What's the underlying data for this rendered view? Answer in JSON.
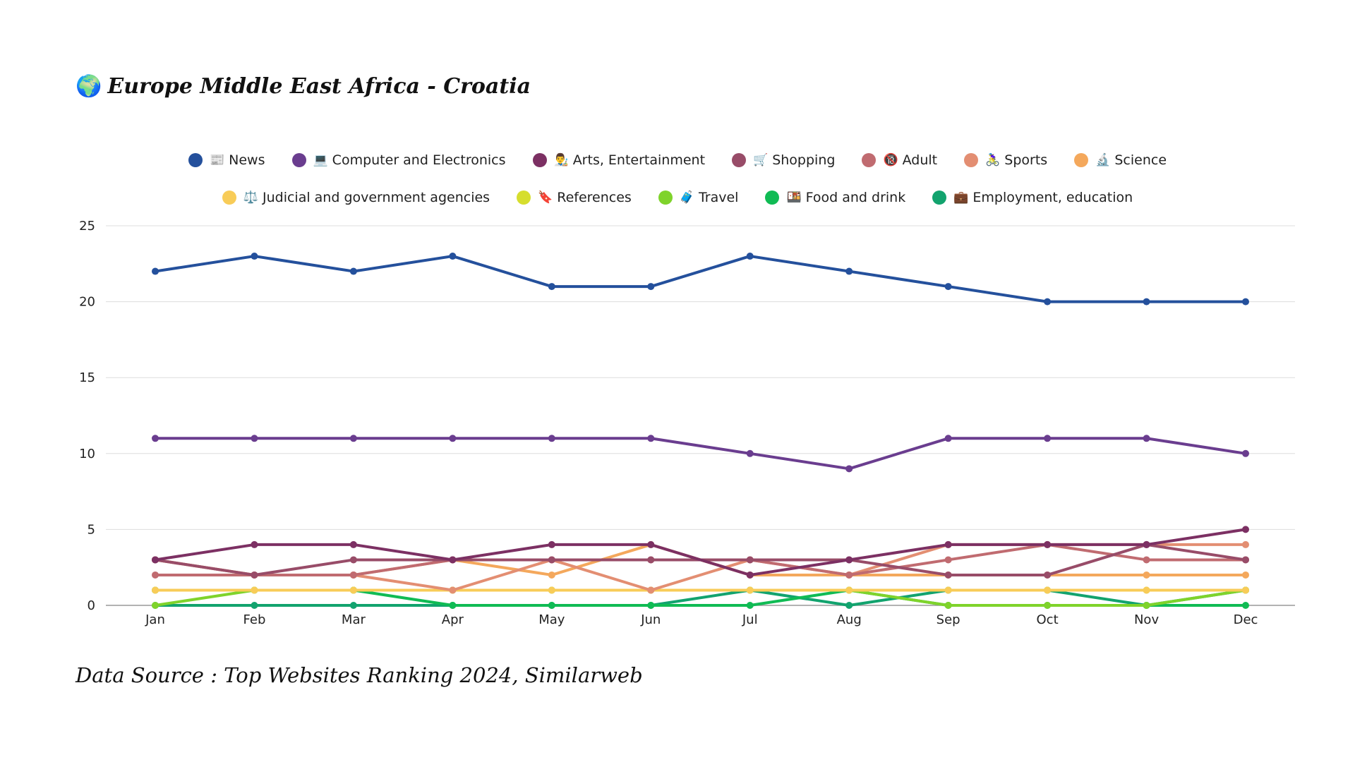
{
  "title": {
    "icon": "🌍",
    "text": "Europe Middle East Africa - Croatia"
  },
  "source": "Data Source : Top Websites Ranking 2024, Similarweb",
  "chart_data": {
    "type": "line",
    "categories": [
      "Jan",
      "Feb",
      "Mar",
      "Apr",
      "May",
      "Jun",
      "Jul",
      "Aug",
      "Sep",
      "Oct",
      "Nov",
      "Dec"
    ],
    "ylim": [
      0,
      25
    ],
    "yticks": [
      0,
      5,
      10,
      15,
      20,
      25
    ],
    "grid": true,
    "legend_position": "top-center",
    "series": [
      {
        "name": "News",
        "icon": "📰",
        "color": "#24509c",
        "values": [
          22,
          23,
          22,
          23,
          21,
          21,
          23,
          22,
          21,
          20,
          20,
          20
        ]
      },
      {
        "name": "Computer and Electronics",
        "icon": "💻",
        "color": "#6a3d8f",
        "values": [
          11,
          11,
          11,
          11,
          11,
          11,
          10,
          9,
          11,
          11,
          11,
          10
        ]
      },
      {
        "name": "Arts, Entertainment",
        "icon": "👨‍🎨",
        "color": "#7c3063",
        "values": [
          3,
          4,
          4,
          3,
          4,
          4,
          2,
          3,
          4,
          4,
          4,
          5
        ]
      },
      {
        "name": "Shopping",
        "icon": "🛒",
        "color": "#984c68",
        "values": [
          3,
          2,
          3,
          3,
          3,
          3,
          3,
          3,
          2,
          2,
          4,
          3
        ]
      },
      {
        "name": "Adult",
        "icon": "🔞",
        "color": "#c06b70",
        "values": [
          2,
          2,
          2,
          3,
          3,
          3,
          3,
          2,
          3,
          4,
          3,
          3
        ]
      },
      {
        "name": "Sports",
        "icon": "🚴‍♀️",
        "color": "#e38e72",
        "values": [
          3,
          2,
          2,
          1,
          3,
          1,
          3,
          2,
          4,
          4,
          4,
          4
        ]
      },
      {
        "name": "Science",
        "icon": "🔬",
        "color": "#f4a85c",
        "values": [
          3,
          2,
          2,
          3,
          2,
          4,
          2,
          2,
          2,
          2,
          2,
          2
        ]
      },
      {
        "name": "Judicial and government agencies",
        "icon": "⚖️",
        "color": "#f8cc58",
        "values": [
          1,
          1,
          1,
          1,
          1,
          1,
          1,
          1,
          1,
          1,
          1,
          1
        ]
      },
      {
        "name": "References",
        "icon": "🔖",
        "color": "#d6de2e",
        "values": [
          1,
          1,
          1,
          1,
          1,
          1,
          1,
          1,
          1,
          1,
          1,
          1
        ]
      },
      {
        "name": "Travel",
        "icon": "🧳",
        "color": "#7fd32b",
        "values": [
          0,
          1,
          1,
          1,
          1,
          1,
          1,
          1,
          0,
          0,
          0,
          1
        ]
      },
      {
        "name": "Food and drink",
        "icon": "🍱",
        "color": "#10bb54",
        "values": [
          1,
          1,
          1,
          0,
          0,
          0,
          0,
          1,
          0,
          0,
          0,
          0
        ]
      },
      {
        "name": "Employment, education",
        "icon": "💼",
        "color": "#12a36e",
        "values": [
          0,
          0,
          0,
          0,
          0,
          0,
          1,
          0,
          1,
          1,
          0,
          1
        ]
      }
    ]
  }
}
